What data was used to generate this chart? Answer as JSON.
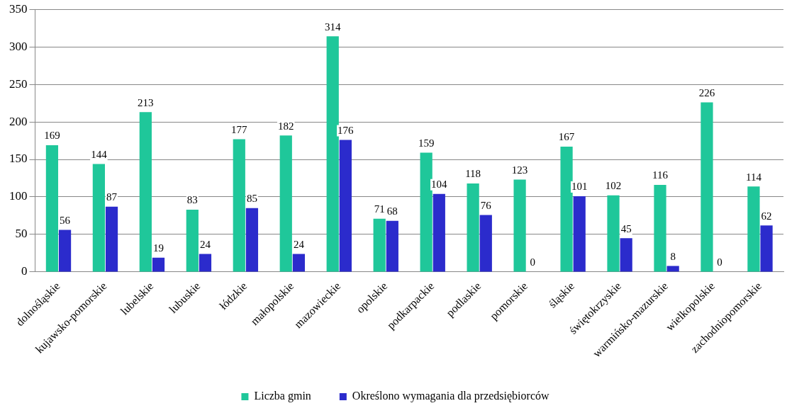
{
  "chart_data": {
    "type": "bar",
    "categories": [
      "dolnośląskie",
      "kujawsko-pomorskie",
      "lubelskie",
      "lubuskie",
      "łódzkie",
      "małopolskie",
      "mazowieckie",
      "opolskie",
      "podkarpackie",
      "podlaskie",
      "pomorskie",
      "śląskie",
      "świętokrzyskie",
      "warmińsko-mazurskie",
      "wielkopolskie",
      "zachodniopomorskie"
    ],
    "series": [
      {
        "name": "Liczba gmin",
        "color": "#1fc79a",
        "values": [
          169,
          144,
          213,
          83,
          177,
          182,
          314,
          71,
          159,
          118,
          123,
          167,
          102,
          116,
          226,
          114
        ]
      },
      {
        "name": "Określono wymagania dla przedsiębiorców",
        "color": "#2b2bcc",
        "values": [
          56,
          87,
          19,
          24,
          85,
          24,
          176,
          68,
          104,
          76,
          0,
          101,
          45,
          8,
          0,
          62
        ]
      }
    ],
    "ylim": [
      0,
      350
    ],
    "yticks": [
      0,
      50,
      100,
      150,
      200,
      250,
      300,
      350
    ],
    "grid": "y",
    "legend": "bottom",
    "data_labels": true
  }
}
